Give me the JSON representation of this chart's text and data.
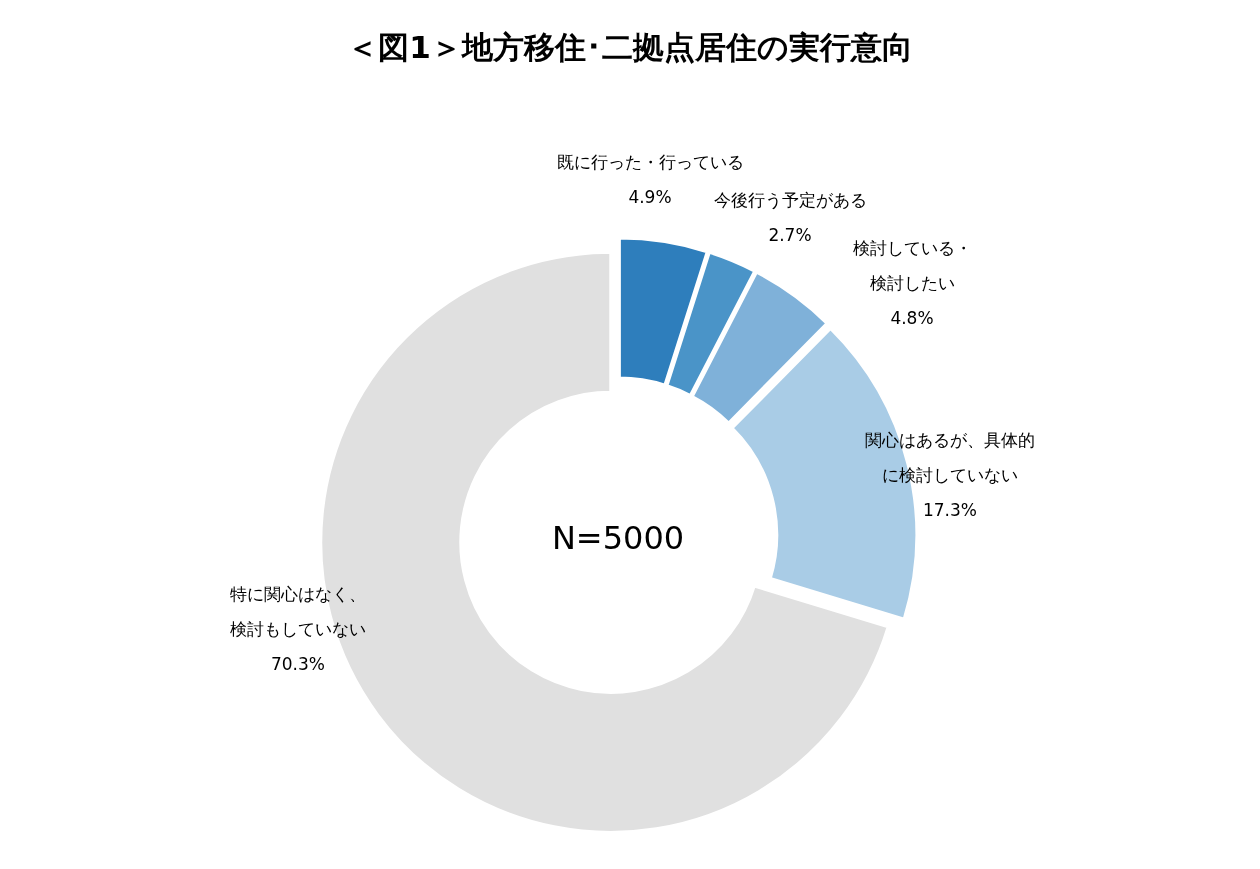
{
  "chart_data": {
    "type": "donut",
    "title": "＜図1＞地方移住･二拠点居住の実行意向",
    "categories": [
      "既に行った・行っている",
      "今後行う予定がある",
      "検討している・検討したい",
      "関心はあるが、具体的に検討していない",
      "特に関心はなく、検討もしていない"
    ],
    "values": [
      4.9,
      2.7,
      4.8,
      17.3,
      70.3
    ],
    "value_labels": [
      "4.9%",
      "2.7%",
      "4.8%",
      "17.3%",
      "70.3%"
    ],
    "colors": [
      "#2e7ebc",
      "#4a94c8",
      "#7fb1d9",
      "#a9cce6",
      "#e0e0e0"
    ],
    "annotations": [
      "N=5000"
    ],
    "legend": false
  }
}
